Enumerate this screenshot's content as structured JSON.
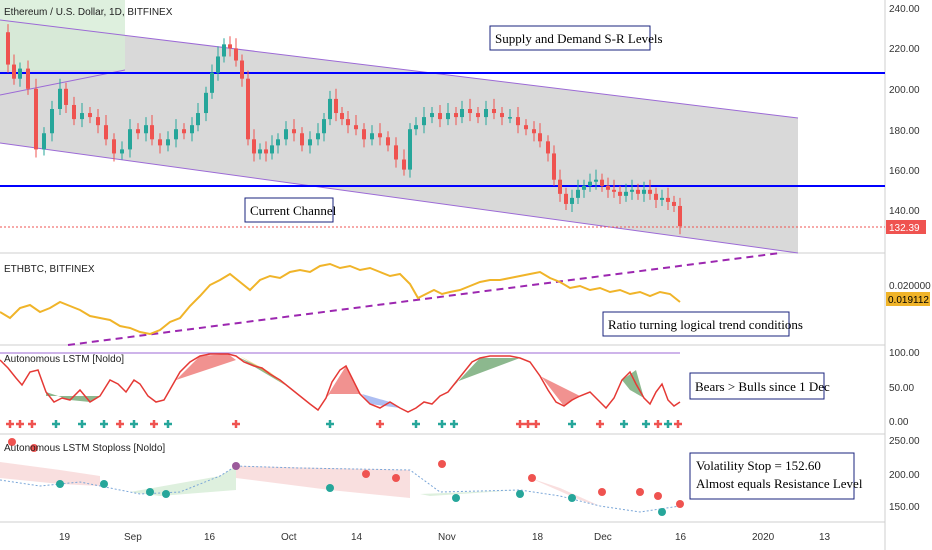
{
  "panes": {
    "main_title": "Ethereum / U.S. Dollar, 1D, BITFINEX",
    "ratio_title": "ETHBTC, BITFINEX",
    "lstm_title": "Autonomous LSTM [Noldo]",
    "stoploss_title": "Autonomous LSTM Stoploss [Noldo]"
  },
  "annotations": {
    "supply_demand": "Supply and Demand S-R Levels",
    "current_channel": "Current Channel",
    "ratio_note": "Ratio turning logical trend conditions",
    "bears_note": "Bears > Bulls since 1 Dec",
    "volatility_line1": "Volatility Stop = 152.60",
    "volatility_line2": "Almost equals Resistance Level"
  },
  "price_axis": {
    "ticks": [
      "240.00",
      "220.00",
      "200.00",
      "180.00",
      "160.00",
      "140.00"
    ],
    "last_price": "132.39"
  },
  "ratio_axis": {
    "ticks": [
      "0.020000"
    ],
    "last_value": "0.019112"
  },
  "lstm_axis": {
    "ticks": [
      "100.00",
      "50.00",
      "0.00"
    ]
  },
  "stoploss_axis": {
    "ticks": [
      "250.00",
      "200.00",
      "150.00"
    ]
  },
  "time_axis": {
    "labels": [
      "19",
      "Sep",
      "16",
      "Oct",
      "14",
      "Nov",
      "18",
      "Dec",
      "16",
      "2020",
      "13"
    ]
  },
  "colors": {
    "up": "#26a69a",
    "down": "#ef5350",
    "resistance": "#0000ff",
    "channel": "#9c6ad6",
    "ratio_line": "#f0b429",
    "trend_dash": "#9c27b0",
    "bull_fill": "#2e7d32",
    "bear_fill": "#e53935",
    "last_price_tag": "#ef5350",
    "last_ratio_tag": "#f0b429"
  }
}
